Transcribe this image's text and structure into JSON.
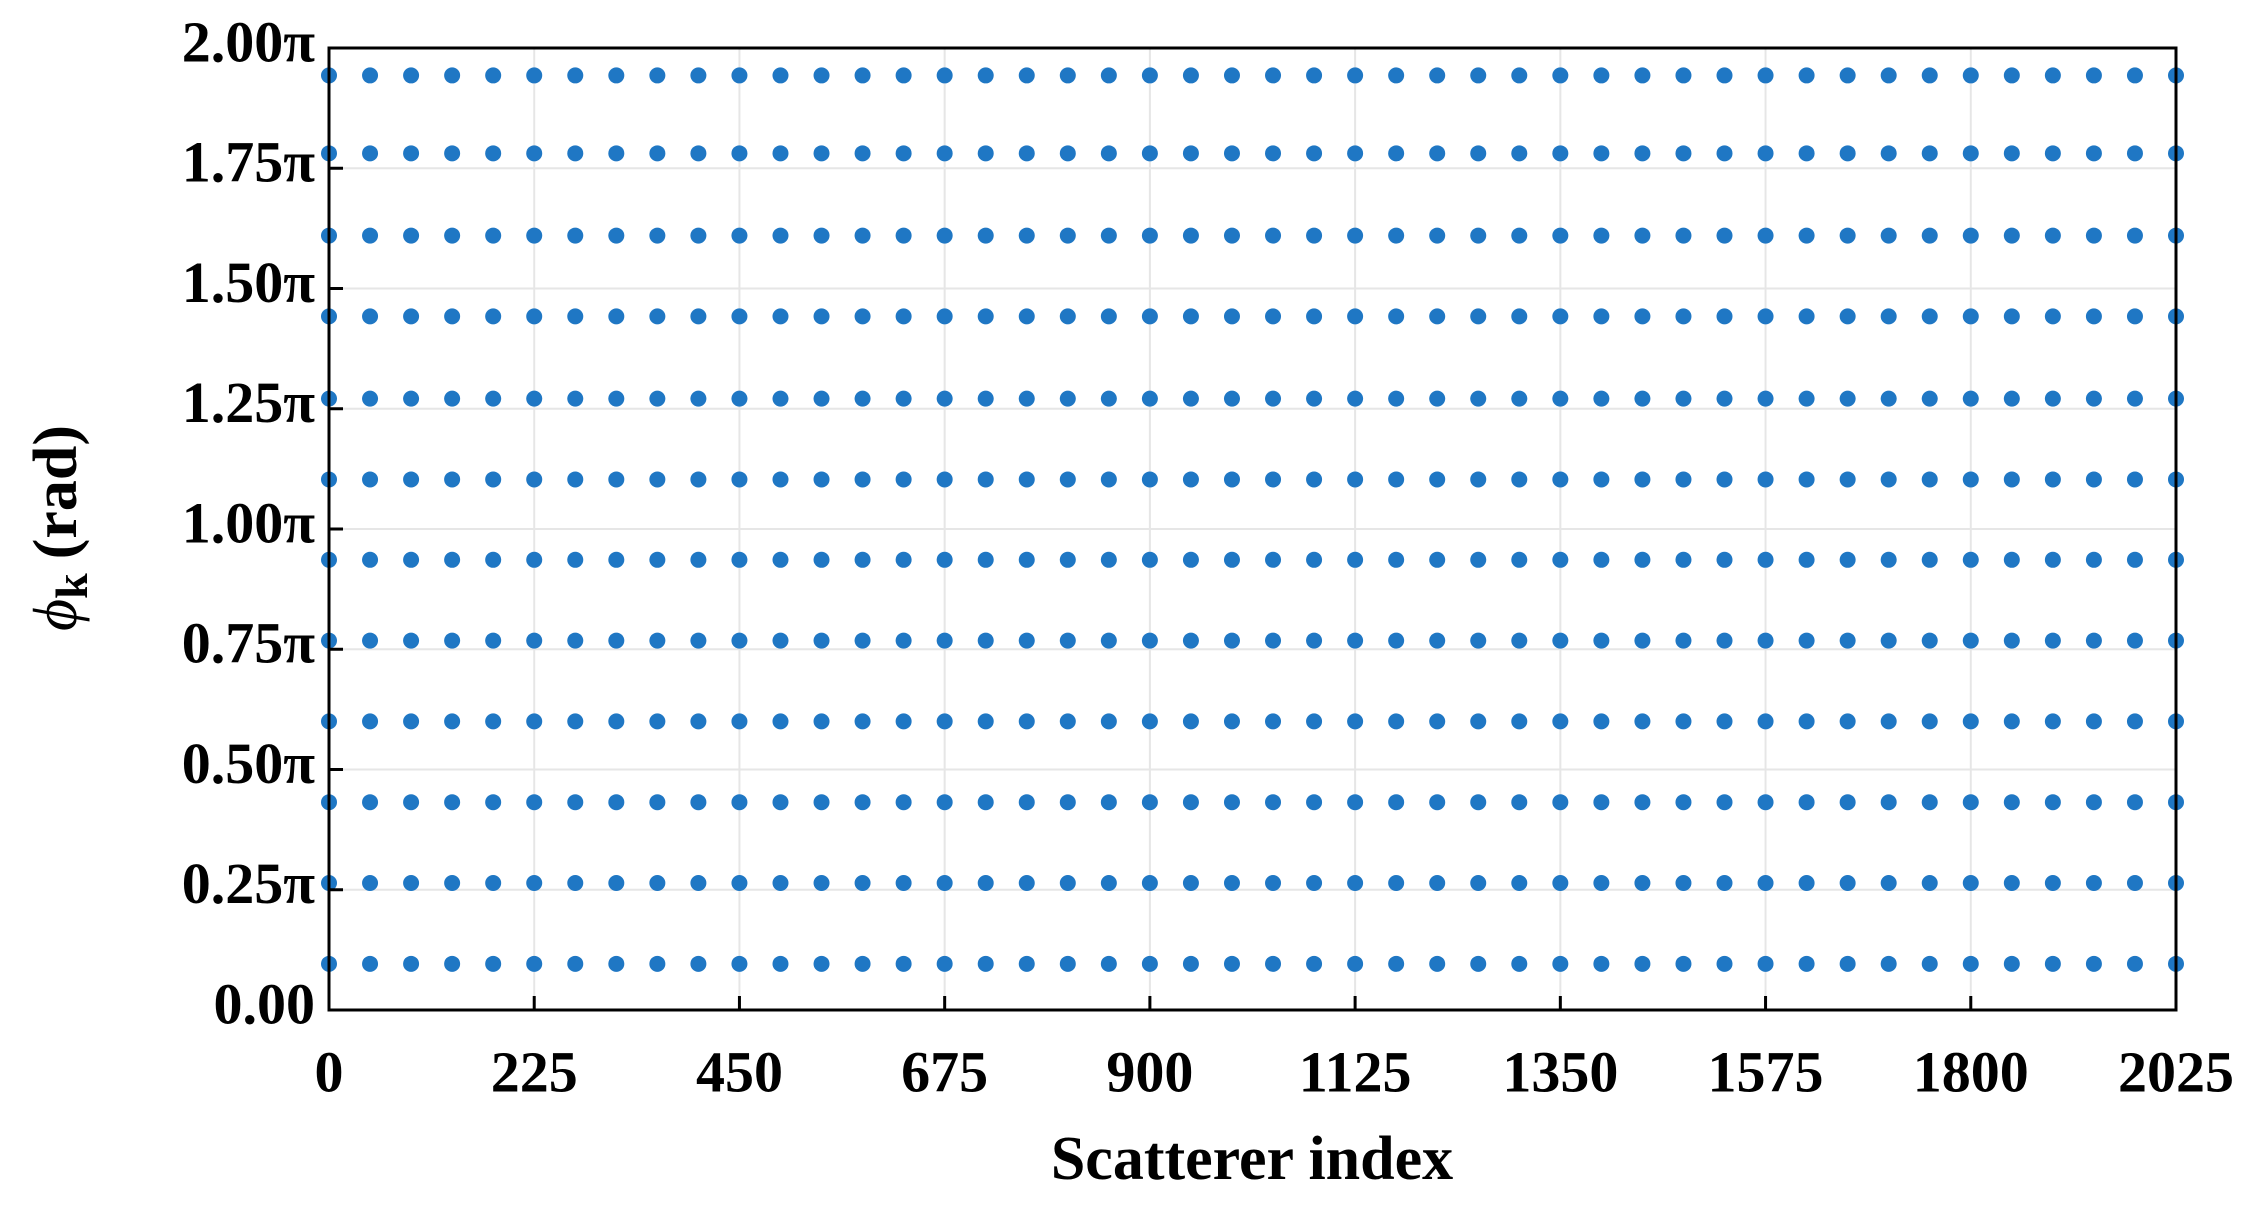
{
  "chart_data": {
    "type": "scatter",
    "xlabel": "Scatterer index",
    "ylabel": "ϕ",
    "ylabel_sub": "k",
    "ylabel_unit": "(rad)",
    "color": "#1f77c4",
    "grid": true,
    "xlim": [
      0,
      2025
    ],
    "xticks": [
      0,
      225,
      450,
      675,
      900,
      1125,
      1350,
      1575,
      1800,
      2025
    ],
    "ylim": [
      0,
      2
    ],
    "yticks": [
      {
        "value": 0,
        "label": "0.00"
      },
      {
        "value": 0.25,
        "label": "0.25π"
      },
      {
        "value": 0.5,
        "label": "0.50π"
      },
      {
        "value": 0.75,
        "label": "0.75π"
      },
      {
        "value": 1,
        "label": "1.00π"
      },
      {
        "value": 1.25,
        "label": "1.25π"
      },
      {
        "value": 1.5,
        "label": "1.50π"
      },
      {
        "value": 1.75,
        "label": "1.75π"
      },
      {
        "value": 2,
        "label": "2.00π"
      }
    ],
    "x": [
      0,
      45,
      90,
      135,
      180,
      225,
      270,
      315,
      360,
      405,
      450,
      495,
      540,
      585,
      630,
      675,
      720,
      765,
      810,
      855,
      900,
      945,
      990,
      1035,
      1080,
      1125,
      1170,
      1215,
      1260,
      1305,
      1350,
      1395,
      1440,
      1485,
      1530,
      1575,
      1620,
      1665,
      1710,
      1755,
      1800,
      1845,
      1890,
      1935,
      1980,
      2025
    ],
    "series": [
      {
        "values": [
          0.096,
          0.096,
          0.096,
          0.096,
          0.096,
          0.096,
          0.096,
          0.096,
          0.096,
          0.096,
          0.096,
          0.096,
          0.096,
          0.096,
          0.096,
          0.096,
          0.096,
          0.096,
          0.096,
          0.096,
          0.096,
          0.096,
          0.096,
          0.096,
          0.096,
          0.096,
          0.096,
          0.096,
          0.096,
          0.096,
          0.096,
          0.096,
          0.096,
          0.096,
          0.096,
          0.096,
          0.096,
          0.096,
          0.096,
          0.096,
          0.096,
          0.096,
          0.096,
          0.096,
          0.096,
          0.096
        ]
      },
      {
        "values": [
          0.264,
          0.264,
          0.264,
          0.264,
          0.264,
          0.264,
          0.264,
          0.264,
          0.264,
          0.264,
          0.264,
          0.264,
          0.264,
          0.264,
          0.264,
          0.264,
          0.264,
          0.264,
          0.264,
          0.264,
          0.264,
          0.264,
          0.264,
          0.264,
          0.264,
          0.264,
          0.264,
          0.264,
          0.264,
          0.264,
          0.264,
          0.264,
          0.264,
          0.264,
          0.264,
          0.264,
          0.264,
          0.264,
          0.264,
          0.264,
          0.264,
          0.264,
          0.264,
          0.264,
          0.264,
          0.264
        ]
      },
      {
        "values": [
          0.432,
          0.432,
          0.432,
          0.432,
          0.432,
          0.432,
          0.432,
          0.432,
          0.432,
          0.432,
          0.432,
          0.432,
          0.432,
          0.432,
          0.432,
          0.432,
          0.432,
          0.432,
          0.432,
          0.432,
          0.432,
          0.432,
          0.432,
          0.432,
          0.432,
          0.432,
          0.432,
          0.432,
          0.432,
          0.432,
          0.432,
          0.432,
          0.432,
          0.432,
          0.432,
          0.432,
          0.432,
          0.432,
          0.432,
          0.432,
          0.432,
          0.432,
          0.432,
          0.432,
          0.432,
          0.432
        ]
      },
      {
        "values": [
          0.6,
          0.6,
          0.6,
          0.6,
          0.6,
          0.6,
          0.6,
          0.6,
          0.6,
          0.6,
          0.6,
          0.6,
          0.6,
          0.6,
          0.6,
          0.6,
          0.6,
          0.6,
          0.6,
          0.6,
          0.6,
          0.6,
          0.6,
          0.6,
          0.6,
          0.6,
          0.6,
          0.6,
          0.6,
          0.6,
          0.6,
          0.6,
          0.6,
          0.6,
          0.6,
          0.6,
          0.6,
          0.6,
          0.6,
          0.6,
          0.6,
          0.6,
          0.6,
          0.6,
          0.6,
          0.6
        ]
      },
      {
        "values": [
          0.768,
          0.768,
          0.768,
          0.768,
          0.768,
          0.768,
          0.768,
          0.768,
          0.768,
          0.768,
          0.768,
          0.768,
          0.768,
          0.768,
          0.768,
          0.768,
          0.768,
          0.768,
          0.768,
          0.768,
          0.768,
          0.768,
          0.768,
          0.768,
          0.768,
          0.768,
          0.768,
          0.768,
          0.768,
          0.768,
          0.768,
          0.768,
          0.768,
          0.768,
          0.768,
          0.768,
          0.768,
          0.768,
          0.768,
          0.768,
          0.768,
          0.768,
          0.768,
          0.768,
          0.768,
          0.768
        ]
      },
      {
        "values": [
          0.936,
          0.936,
          0.936,
          0.936,
          0.936,
          0.936,
          0.936,
          0.936,
          0.936,
          0.936,
          0.936,
          0.936,
          0.936,
          0.936,
          0.936,
          0.936,
          0.936,
          0.936,
          0.936,
          0.936,
          0.936,
          0.936,
          0.936,
          0.936,
          0.936,
          0.936,
          0.936,
          0.936,
          0.936,
          0.936,
          0.936,
          0.936,
          0.936,
          0.936,
          0.936,
          0.936,
          0.936,
          0.936,
          0.936,
          0.936,
          0.936,
          0.936,
          0.936,
          0.936,
          0.936,
          0.936
        ]
      },
      {
        "values": [
          1.103,
          1.103,
          1.103,
          1.103,
          1.103,
          1.103,
          1.103,
          1.103,
          1.103,
          1.103,
          1.103,
          1.103,
          1.103,
          1.103,
          1.103,
          1.103,
          1.103,
          1.103,
          1.103,
          1.103,
          1.103,
          1.103,
          1.103,
          1.103,
          1.103,
          1.103,
          1.103,
          1.103,
          1.103,
          1.103,
          1.103,
          1.103,
          1.103,
          1.103,
          1.103,
          1.103,
          1.103,
          1.103,
          1.103,
          1.103,
          1.103,
          1.103,
          1.103,
          1.103,
          1.103,
          1.103
        ]
      },
      {
        "values": [
          1.271,
          1.271,
          1.271,
          1.271,
          1.271,
          1.271,
          1.271,
          1.271,
          1.271,
          1.271,
          1.271,
          1.271,
          1.271,
          1.271,
          1.271,
          1.271,
          1.271,
          1.271,
          1.271,
          1.271,
          1.271,
          1.271,
          1.271,
          1.271,
          1.271,
          1.271,
          1.271,
          1.271,
          1.271,
          1.271,
          1.271,
          1.271,
          1.271,
          1.271,
          1.271,
          1.271,
          1.271,
          1.271,
          1.271,
          1.271,
          1.271,
          1.271,
          1.271,
          1.271,
          1.271,
          1.271
        ]
      },
      {
        "values": [
          1.442,
          1.442,
          1.442,
          1.442,
          1.442,
          1.442,
          1.442,
          1.442,
          1.442,
          1.442,
          1.442,
          1.442,
          1.442,
          1.442,
          1.442,
          1.442,
          1.442,
          1.442,
          1.442,
          1.442,
          1.442,
          1.442,
          1.442,
          1.442,
          1.442,
          1.442,
          1.442,
          1.442,
          1.442,
          1.442,
          1.442,
          1.442,
          1.442,
          1.442,
          1.442,
          1.442,
          1.442,
          1.442,
          1.442,
          1.442,
          1.442,
          1.442,
          1.442,
          1.442,
          1.442,
          1.442
        ]
      },
      {
        "values": [
          1.61,
          1.61,
          1.61,
          1.61,
          1.61,
          1.61,
          1.61,
          1.61,
          1.61,
          1.61,
          1.61,
          1.61,
          1.61,
          1.61,
          1.61,
          1.61,
          1.61,
          1.61,
          1.61,
          1.61,
          1.61,
          1.61,
          1.61,
          1.61,
          1.61,
          1.61,
          1.61,
          1.61,
          1.61,
          1.61,
          1.61,
          1.61,
          1.61,
          1.61,
          1.61,
          1.61,
          1.61,
          1.61,
          1.61,
          1.61,
          1.61,
          1.61,
          1.61,
          1.61,
          1.61,
          1.61
        ]
      },
      {
        "values": [
          1.781,
          1.781,
          1.781,
          1.781,
          1.781,
          1.781,
          1.781,
          1.781,
          1.781,
          1.781,
          1.781,
          1.781,
          1.781,
          1.781,
          1.781,
          1.781,
          1.781,
          1.781,
          1.781,
          1.781,
          1.781,
          1.781,
          1.781,
          1.781,
          1.781,
          1.781,
          1.781,
          1.781,
          1.781,
          1.781,
          1.781,
          1.781,
          1.781,
          1.781,
          1.781,
          1.781,
          1.781,
          1.781,
          1.781,
          1.781,
          1.781,
          1.781,
          1.781,
          1.781,
          1.781,
          1.781
        ]
      },
      {
        "values": [
          1.943,
          1.943,
          1.943,
          1.943,
          1.943,
          1.943,
          1.943,
          1.943,
          1.943,
          1.943,
          1.943,
          1.943,
          1.943,
          1.943,
          1.943,
          1.943,
          1.943,
          1.943,
          1.943,
          1.943,
          1.943,
          1.943,
          1.943,
          1.943,
          1.943,
          1.943,
          1.943,
          1.943,
          1.943,
          1.943,
          1.943,
          1.943,
          1.943,
          1.943,
          1.943,
          1.943,
          1.943,
          1.943,
          1.943,
          1.943,
          1.943,
          1.943,
          1.943,
          1.943,
          1.943,
          1.943
        ]
      }
    ]
  }
}
